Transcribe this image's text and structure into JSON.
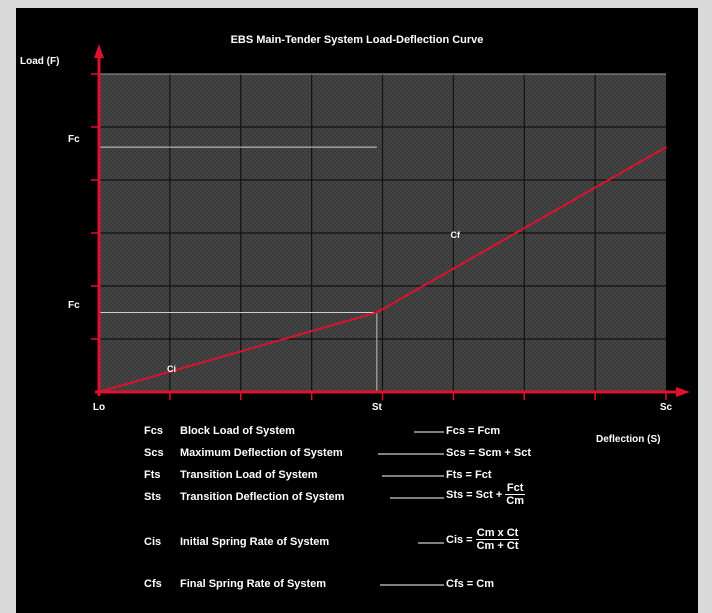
{
  "colors": {
    "background": "#000000",
    "plot_area": "#3a3a3a",
    "curve": "#e0102f",
    "axes": "#e0102f",
    "text": "#ffffff",
    "page": "#d9d9d9"
  },
  "chart_data": {
    "type": "line",
    "title": "EBS Main-Tender System Load-Deflection Curve",
    "ylabel": "Load (F)",
    "xlabel": "Deflection (S)",
    "xlim": [
      0,
      100
    ],
    "ylim": [
      0,
      100
    ],
    "grid": true,
    "series": [
      {
        "name": "",
        "points": [
          [
            0,
            0
          ],
          [
            49,
            25
          ],
          [
            100,
            77
          ]
        ]
      }
    ],
    "x_tick_labels": [
      {
        "x": 0,
        "text": "Lo"
      },
      {
        "x": 49,
        "text": "St"
      },
      {
        "x": 100,
        "text": "Sc"
      }
    ],
    "y_tick_labels": [
      {
        "y": 25,
        "text": "Fc"
      },
      {
        "y": 77,
        "text": "Fc"
      }
    ],
    "annotations": [
      {
        "text": "Ci",
        "x": 12,
        "y": 7
      },
      {
        "text": "Cf",
        "x": 62,
        "y": 49
      }
    ],
    "legend_items": [
      {
        "symbol": "Fcs",
        "label": "Block Load of System",
        "formula": "Fcs = Fcm"
      },
      {
        "symbol": "Scs",
        "label": "Maximum Deflection of System",
        "formula": "Scs = Scm + Sct"
      },
      {
        "symbol": "Fts",
        "label": "Transition Load of System",
        "formula": "Fts = Fct"
      },
      {
        "symbol": "Sts",
        "label": "Transition Deflection of System",
        "formula_lead": "Sts = Sct +",
        "frac_num": "Fct",
        "frac_den": "Cm"
      },
      {
        "symbol": "Cis",
        "label": "Initial Spring Rate of System",
        "formula_lead": "Cis =",
        "frac_num": "Cm x Ct",
        "frac_den": "Cm + Ct"
      },
      {
        "symbol": "Cfs",
        "label": "Final Spring Rate of System",
        "formula": "Cfs = Cm"
      }
    ]
  }
}
